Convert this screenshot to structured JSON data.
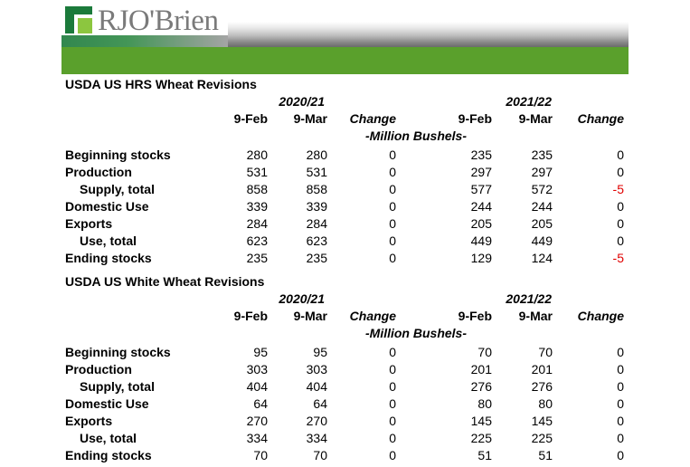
{
  "brand": {
    "name": "RJO'Brien"
  },
  "colors": {
    "green_bar": "#5aa02c",
    "logo_green": "#1b7a3b",
    "negative": "#e00000"
  },
  "tables": [
    {
      "title": "USDA US HRS Wheat Revisions",
      "years": [
        "2020/21",
        "2021/22"
      ],
      "columns": [
        "9-Feb",
        "9-Mar",
        "Change",
        "9-Feb",
        "9-Mar",
        "Change"
      ],
      "unit": "-Million Bushels-",
      "rows": [
        {
          "label": "Beginning stocks",
          "indent": false,
          "values": [
            "280",
            "280",
            "0",
            "235",
            "235",
            "0"
          ]
        },
        {
          "label": "Production",
          "indent": false,
          "values": [
            "531",
            "531",
            "0",
            "297",
            "297",
            "0"
          ]
        },
        {
          "label": "Supply, total",
          "indent": true,
          "values": [
            "858",
            "858",
            "0",
            "577",
            "572",
            "-5"
          ]
        },
        {
          "label": "Domestic Use",
          "indent": false,
          "values": [
            "339",
            "339",
            "0",
            "244",
            "244",
            "0"
          ]
        },
        {
          "label": "Exports",
          "indent": false,
          "values": [
            "284",
            "284",
            "0",
            "205",
            "205",
            "0"
          ]
        },
        {
          "label": "Use, total",
          "indent": true,
          "values": [
            "623",
            "623",
            "0",
            "449",
            "449",
            "0"
          ]
        },
        {
          "label": "Ending stocks",
          "indent": false,
          "values": [
            "235",
            "235",
            "0",
            "129",
            "124",
            "-5"
          ]
        }
      ]
    },
    {
      "title": "USDA US White Wheat Revisions",
      "years": [
        "2020/21",
        "2021/22"
      ],
      "columns": [
        "9-Feb",
        "9-Mar",
        "Change",
        "9-Feb",
        "9-Mar",
        "Change"
      ],
      "unit": "-Million Bushels-",
      "rows": [
        {
          "label": "Beginning stocks",
          "indent": false,
          "values": [
            "95",
            "95",
            "0",
            "70",
            "70",
            "0"
          ]
        },
        {
          "label": "Production",
          "indent": false,
          "values": [
            "303",
            "303",
            "0",
            "201",
            "201",
            "0"
          ]
        },
        {
          "label": "Supply, total",
          "indent": true,
          "values": [
            "404",
            "404",
            "0",
            "276",
            "276",
            "0"
          ]
        },
        {
          "label": "Domestic Use",
          "indent": false,
          "values": [
            "64",
            "64",
            "0",
            "80",
            "80",
            "0"
          ]
        },
        {
          "label": "Exports",
          "indent": false,
          "values": [
            "270",
            "270",
            "0",
            "145",
            "145",
            "0"
          ]
        },
        {
          "label": "Use, total",
          "indent": true,
          "values": [
            "334",
            "334",
            "0",
            "225",
            "225",
            "0"
          ]
        },
        {
          "label": "Ending stocks",
          "indent": false,
          "values": [
            "70",
            "70",
            "0",
            "51",
            "51",
            "0"
          ]
        }
      ]
    }
  ]
}
